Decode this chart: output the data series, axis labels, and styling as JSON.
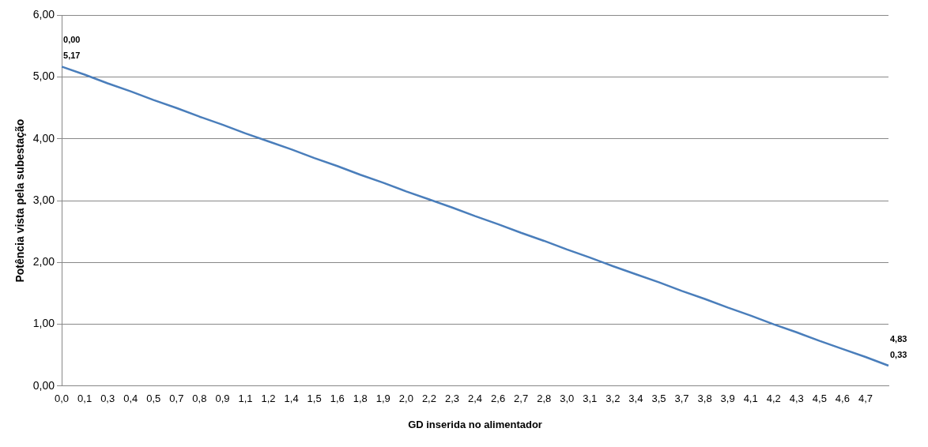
{
  "chart_data": {
    "type": "line",
    "xlabel": "GD inserida no alimentador",
    "ylabel": "Potência vista pela subestação",
    "categories": [
      "0,0",
      "0,1",
      "0,3",
      "0,4",
      "0,5",
      "0,7",
      "0,8",
      "0,9",
      "1,1",
      "1,2",
      "1,4",
      "1,5",
      "1,6",
      "1,8",
      "1,9",
      "2,0",
      "2,2",
      "2,3",
      "2,4",
      "2,6",
      "2,7",
      "2,8",
      "3,0",
      "3,1",
      "3,2",
      "3,4",
      "3,5",
      "3,7",
      "3,8",
      "3,9",
      "4,1",
      "4,2",
      "4,3",
      "4,5",
      "4,6",
      "4,7",
      null
    ],
    "series": [
      {
        "color": "#4a7ebb",
        "values": [
          5.17,
          5.04,
          4.9,
          4.77,
          4.63,
          4.5,
          4.36,
          4.23,
          4.09,
          3.96,
          3.83,
          3.69,
          3.56,
          3.42,
          3.29,
          3.15,
          3.02,
          2.89,
          2.75,
          2.62,
          2.48,
          2.35,
          2.21,
          2.08,
          1.94,
          1.81,
          1.68,
          1.54,
          1.41,
          1.27,
          1.14,
          1.0,
          0.87,
          0.73,
          0.6,
          0.47,
          0.33
        ],
        "value_labels": [
          "0,00\n5,17",
          null,
          null,
          null,
          null,
          null,
          null,
          null,
          null,
          null,
          null,
          null,
          null,
          null,
          null,
          null,
          null,
          null,
          null,
          null,
          null,
          null,
          null,
          null,
          null,
          null,
          null,
          null,
          null,
          null,
          null,
          null,
          null,
          null,
          null,
          null,
          "4,83\n0,33"
        ]
      }
    ],
    "ylim": [
      0,
      6
    ],
    "yticks": [
      {
        "value": 0,
        "label": "0,00"
      },
      {
        "value": 1,
        "label": "1,00"
      },
      {
        "value": 2,
        "label": "2,00"
      },
      {
        "value": 3,
        "label": "3,00"
      },
      {
        "value": 4,
        "label": "4,00"
      },
      {
        "value": 5,
        "label": "5,00"
      },
      {
        "value": 6,
        "label": "6,00"
      }
    ],
    "grid": "y",
    "legend": false,
    "marker": "none",
    "line_style": "solid"
  }
}
